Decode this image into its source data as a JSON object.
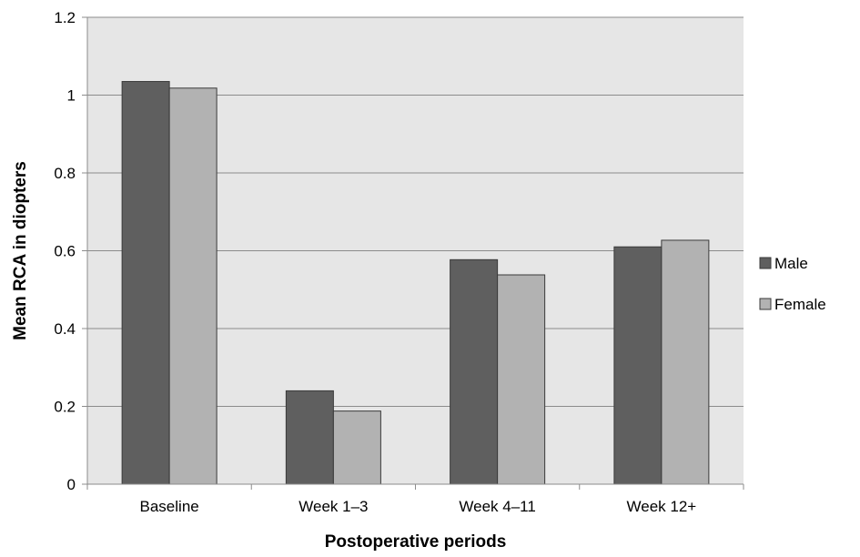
{
  "chart_data": {
    "type": "bar",
    "xlabel": "Postoperative periods",
    "ylabel": "Mean RCA in diopters",
    "categories": [
      "Baseline",
      "Week 1–3",
      "Week 4–11",
      "Week 12+"
    ],
    "series": [
      {
        "name": "Male",
        "values": [
          1.035,
          0.24,
          0.577,
          0.61
        ],
        "color": "#5f5f5f"
      },
      {
        "name": "Female",
        "values": [
          1.018,
          0.188,
          0.538,
          0.627
        ],
        "color": "#b2b2b2"
      }
    ],
    "ylim": [
      0,
      1.2
    ],
    "yticks": [
      "0",
      "0.2",
      "0.4",
      "0.6",
      "0.8",
      "1",
      "1.2"
    ],
    "grid": true,
    "legend_position": "right",
    "plot_background": "#e6e6e6"
  }
}
